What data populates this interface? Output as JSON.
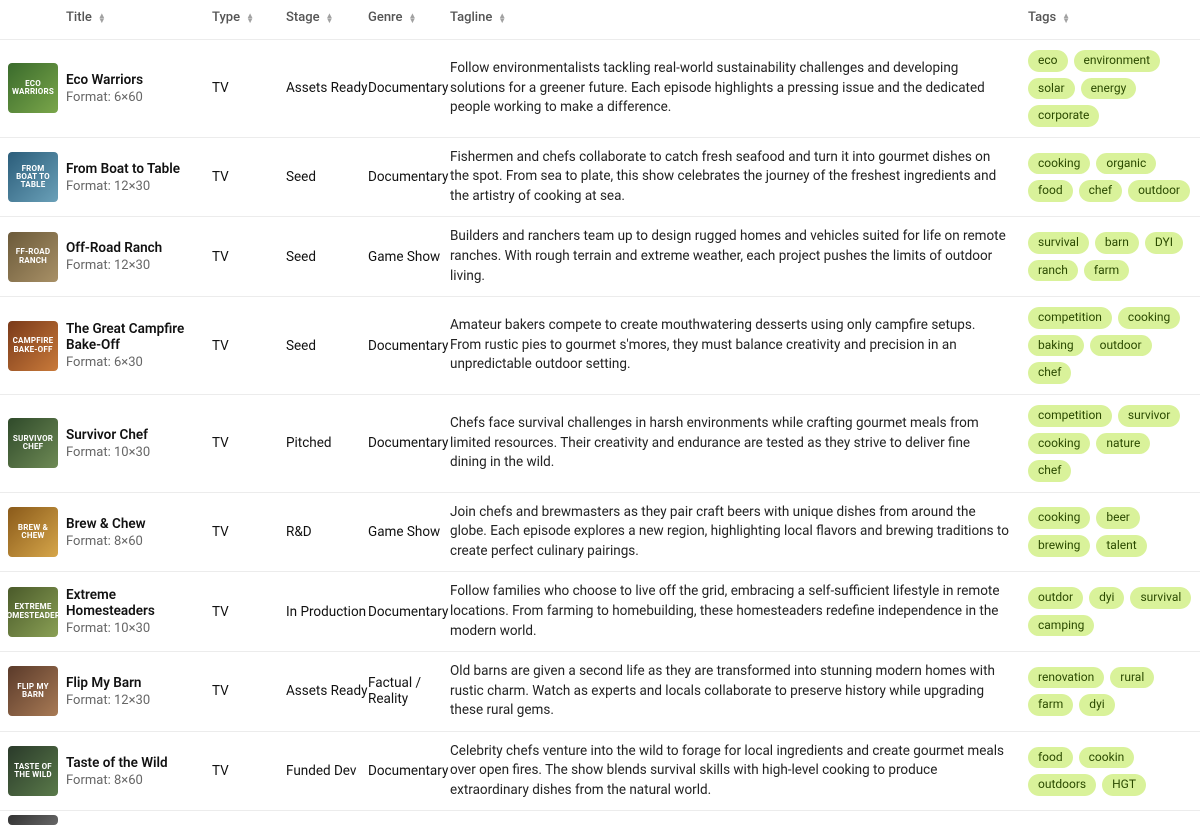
{
  "columns": {
    "title": "Title",
    "type": "Type",
    "stage": "Stage",
    "genre": "Genre",
    "tagline": "Tagline",
    "tags": "Tags"
  },
  "format_prefix": "Format: ",
  "tag_color": "#d9f29a",
  "rows": [
    {
      "thumb_label": "ECO WARRIORS",
      "thumb_bg": "linear-gradient(135deg,#3a6b2c,#7aa64a)",
      "title": "Eco Warriors",
      "format": "6×60",
      "type": "TV",
      "stage": "Assets Ready",
      "genre": "Documentary",
      "tagline": "Follow environmentalists tackling real-world sustainability challenges and developing solutions for a greener future. Each episode highlights a pressing issue and the dedicated people working to make a difference.",
      "tags": [
        "eco",
        "environment",
        "solar",
        "energy",
        "corporate"
      ]
    },
    {
      "thumb_label": "FROM BOAT TO TABLE",
      "thumb_bg": "linear-gradient(135deg,#2b5d7a,#6aa0b8)",
      "title": "From Boat to Table",
      "format": "12×30",
      "type": "TV",
      "stage": "Seed",
      "genre": "Documentary",
      "tagline": "Fishermen and chefs collaborate to catch fresh seafood and turn it into gourmet dishes on the spot. From sea to plate, this show celebrates the journey of the freshest ingredients and the artistry of cooking at sea.",
      "tags": [
        "cooking",
        "organic",
        "food",
        "chef",
        "outdoor"
      ]
    },
    {
      "thumb_label": "FF-ROAD RANCH",
      "thumb_bg": "linear-gradient(135deg,#6b5a3a,#a89066)",
      "title": "Off-Road Ranch",
      "format": "12×30",
      "type": "TV",
      "stage": "Seed",
      "genre": "Game Show",
      "tagline": "Builders and ranchers team up to design rugged homes and vehicles suited for life on remote ranches. With rough terrain and extreme weather, each project pushes the limits of outdoor living.",
      "tags": [
        "survival",
        "barn",
        "DYI",
        "ranch",
        "farm"
      ]
    },
    {
      "thumb_label": "CAMPFIRE BAKE-OFF",
      "thumb_bg": "linear-gradient(135deg,#7a3a1a,#c97a3a)",
      "title": "The Great Campfire Bake-Off",
      "format": "6×30",
      "type": "TV",
      "stage": "Seed",
      "genre": "Documentary",
      "tagline": "Amateur bakers compete to create mouthwatering desserts using only campfire setups. From rustic pies to gourmet s'mores, they must balance creativity and precision in an unpredictable outdoor setting.",
      "tags": [
        "competition",
        "cooking",
        "baking",
        "outdoor",
        "chef"
      ]
    },
    {
      "thumb_label": "SURVIVOR CHEF",
      "thumb_bg": "linear-gradient(135deg,#2f4a2a,#6e8a55)",
      "title": "Survivor Chef",
      "format": "10×30",
      "type": "TV",
      "stage": "Pitched",
      "genre": "Documentary",
      "tagline": "Chefs face survival challenges in harsh environments while crafting gourmet meals from limited resources. Their creativity and endurance are tested as they strive to deliver fine dining in the wild.",
      "tags": [
        "competition",
        "survivor",
        "cooking",
        "nature",
        "chef"
      ]
    },
    {
      "thumb_label": "BREW & CHEW",
      "thumb_bg": "linear-gradient(135deg,#8a5a1a,#d6a64a)",
      "title": "Brew & Chew",
      "format": "8×60",
      "type": "TV",
      "stage": "R&D",
      "genre": "Game Show",
      "tagline": "Join chefs and brewmasters as they pair craft beers with unique dishes from around the globe. Each episode explores a new region, highlighting local flavors and brewing traditions to create perfect culinary pairings.",
      "tags": [
        "cooking",
        "beer",
        "brewing",
        "talent"
      ]
    },
    {
      "thumb_label": "EXTREME HOMESTEADERS",
      "thumb_bg": "linear-gradient(135deg,#4a5a2a,#8aa055)",
      "title": "Extreme Homesteaders",
      "format": "10×30",
      "type": "TV",
      "stage": "In Production",
      "genre": "Documentary",
      "tagline": "Follow families who choose to live off the grid, embracing a self-sufficient lifestyle in remote locations. From farming to homebuilding, these homesteaders redefine independence in the modern world.",
      "tags": [
        "outdor",
        "dyi",
        "survival",
        "camping"
      ]
    },
    {
      "thumb_label": "FLIP MY BARN",
      "thumb_bg": "linear-gradient(135deg,#5a3a2a,#a87a55)",
      "title": "Flip My Barn",
      "format": "12×30",
      "type": "TV",
      "stage": "Assets Ready",
      "genre": "Factual / Reality",
      "tagline": "Old barns are given a second life as they are transformed into stunning modern homes with rustic charm. Watch as experts and locals collaborate to preserve history while upgrading these rural gems.",
      "tags": [
        "renovation",
        "rural",
        "farm",
        "dyi"
      ]
    },
    {
      "thumb_label": "TASTE OF THE WILD",
      "thumb_bg": "linear-gradient(135deg,#2a3a2a,#5a7a4a)",
      "title": "Taste of the Wild",
      "format": "8×60",
      "type": "TV",
      "stage": "Funded Dev",
      "genre": "Documentary",
      "tagline": "Celebrity chefs venture into the wild to forage for local ingredients and create gourmet meals over open fires. The show blends survival skills with high-level cooking to produce extraordinary dishes from the natural world.",
      "tags": [
        "food",
        "cookin",
        "outdoors",
        "HGT"
      ]
    }
  ]
}
